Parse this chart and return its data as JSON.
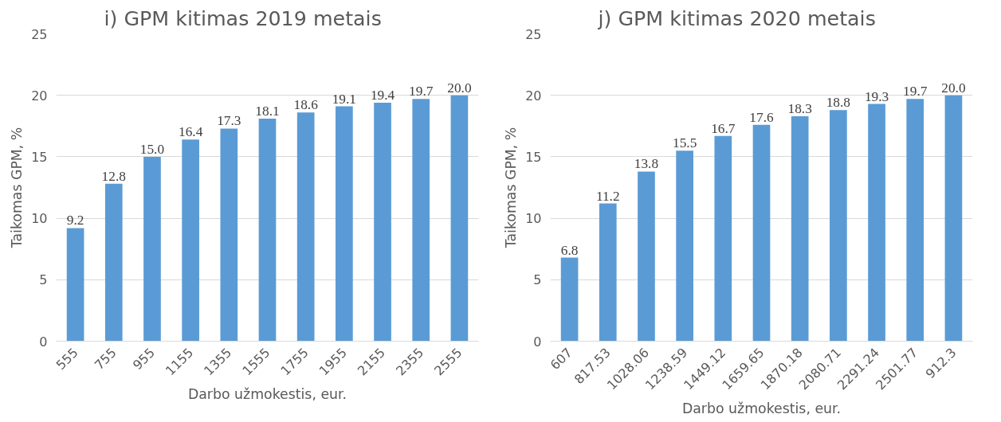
{
  "chart_data": [
    {
      "type": "bar",
      "title": "i) GPM kitimas 2019 metais",
      "xlabel": "Darbo užmokestis, eur.",
      "ylabel": "Taikomas GPM, %",
      "categories": [
        "555",
        "755",
        "955",
        "1155",
        "1355",
        "1555",
        "1755",
        "1955",
        "2155",
        "2355",
        "2555"
      ],
      "values": [
        9.2,
        12.8,
        15.0,
        16.4,
        17.3,
        18.1,
        18.6,
        19.1,
        19.4,
        19.7,
        20.0
      ],
      "value_labels": [
        "9.2",
        "12.8",
        "15.0",
        "16.4",
        "17.3",
        "18.1",
        "18.6",
        "19.1",
        "19.4",
        "19.7",
        "20.0"
      ],
      "color": "#5b9bd5",
      "ylim": [
        0,
        25
      ],
      "yticks": [
        0,
        5,
        10,
        15,
        20,
        25
      ],
      "grid": "y"
    },
    {
      "type": "bar",
      "title": "j) GPM kitimas 2020 metais",
      "xlabel": "Darbo užmokestis, eur.",
      "ylabel": "Taikomas GPM, %",
      "categories": [
        "607",
        "817.53",
        "1028.06",
        "1238.59",
        "1449.12",
        "1659.65",
        "1870.18",
        "2080.71",
        "2291.24",
        "2501.77",
        "912.3"
      ],
      "values": [
        6.8,
        11.2,
        13.8,
        15.5,
        16.7,
        17.6,
        18.3,
        18.8,
        19.3,
        19.7,
        20.0
      ],
      "value_labels": [
        "6.8",
        "11.2",
        "13.8",
        "15.5",
        "16.7",
        "17.6",
        "18.3",
        "18.8",
        "19.3",
        "19.7",
        "20.0"
      ],
      "color": "#5b9bd5",
      "ylim": [
        0,
        25
      ],
      "yticks": [
        0,
        5,
        10,
        15,
        20,
        25
      ],
      "grid": "y"
    }
  ]
}
